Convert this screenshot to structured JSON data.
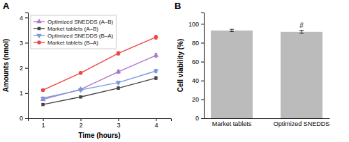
{
  "chart_data": [
    {
      "type": "line",
      "title": "A",
      "xlabel": "Time (hours)",
      "ylabel": "Amounts (nmol)",
      "x": [
        1,
        2,
        3,
        4
      ],
      "series": [
        {
          "name": "Optimized SNEDDS (A–B)",
          "color": "#AA77CC",
          "marker": "triangle-up",
          "line_style": "solid",
          "values": [
            0.75,
            1.15,
            1.85,
            2.5
          ],
          "errors": [
            0.05,
            0.05,
            0.07,
            0.08
          ]
        },
        {
          "name": "Market tablets (A–B)",
          "color": "#444444",
          "marker": "square",
          "line_style": "solid",
          "values": [
            0.55,
            0.85,
            1.2,
            1.6
          ],
          "errors": [
            0.04,
            0.04,
            0.05,
            0.06
          ]
        },
        {
          "name": "Optimized SNEDDS (B–A)",
          "color": "#7799DD",
          "marker": "triangle-down",
          "line_style": "solid",
          "values": [
            0.8,
            1.13,
            1.42,
            1.88
          ],
          "errors": [
            0.05,
            0.05,
            0.06,
            0.07
          ]
        },
        {
          "name": "Market tablets (B–A)",
          "color": "#EE4444",
          "marker": "circle",
          "line_style": "solid",
          "values": [
            1.12,
            1.8,
            2.58,
            3.22
          ],
          "errors": [
            0.05,
            0.05,
            0.07,
            0.08
          ]
        }
      ],
      "xlim": [
        0.6,
        4.4
      ],
      "ylim": [
        0,
        4.2
      ],
      "xticks": [
        1,
        2,
        3,
        4
      ],
      "yticks": [
        0,
        1,
        2,
        3,
        4
      ],
      "legend": "upper left"
    },
    {
      "type": "bar",
      "title": "B",
      "ylabel": "Cell viability (%)",
      "categories": [
        "Market tablets",
        "Optimized SNEDDS"
      ],
      "values": [
        93.0,
        91.5
      ],
      "errors": [
        1.2,
        1.5
      ],
      "color": "#BBBBBB",
      "ylim": [
        0,
        112
      ],
      "yticks": [
        0,
        20,
        40,
        60,
        80,
        100
      ],
      "annotations": [
        {
          "text": "#",
          "x": "Optimized SNEDDS",
          "y": 95.5
        }
      ]
    }
  ]
}
